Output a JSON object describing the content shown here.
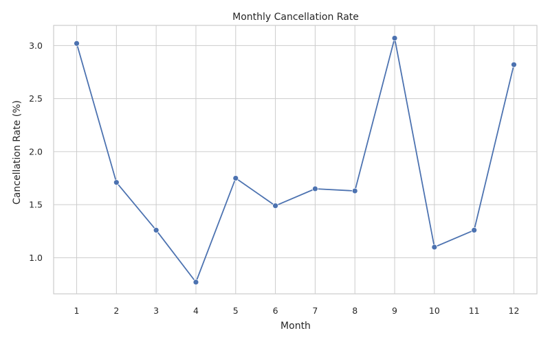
{
  "chart_data": {
    "type": "line",
    "title": "Monthly Cancellation Rate",
    "xlabel": "Month",
    "ylabel": "Cancellation Rate (%)",
    "x": [
      1,
      2,
      3,
      4,
      5,
      6,
      7,
      8,
      9,
      10,
      11,
      12
    ],
    "x_tick_labels": [
      "1",
      "2",
      "3",
      "4",
      "5",
      "6",
      "7",
      "8",
      "9",
      "10",
      "11",
      "12"
    ],
    "y_ticks": [
      1.0,
      1.5,
      2.0,
      2.5,
      3.0
    ],
    "y_tick_labels": [
      "1.0",
      "1.5",
      "2.0",
      "2.5",
      "3.0"
    ],
    "series": [
      {
        "values": [
          3.02,
          1.71,
          1.26,
          0.77,
          1.75,
          1.49,
          1.65,
          1.63,
          3.07,
          1.1,
          1.26,
          2.82
        ],
        "color": "#4c72b0",
        "marker": "circle"
      }
    ],
    "xlim": [
      0.42,
      12.58
    ],
    "ylim": [
      0.66,
      3.19
    ],
    "grid": true,
    "legend": "none"
  }
}
